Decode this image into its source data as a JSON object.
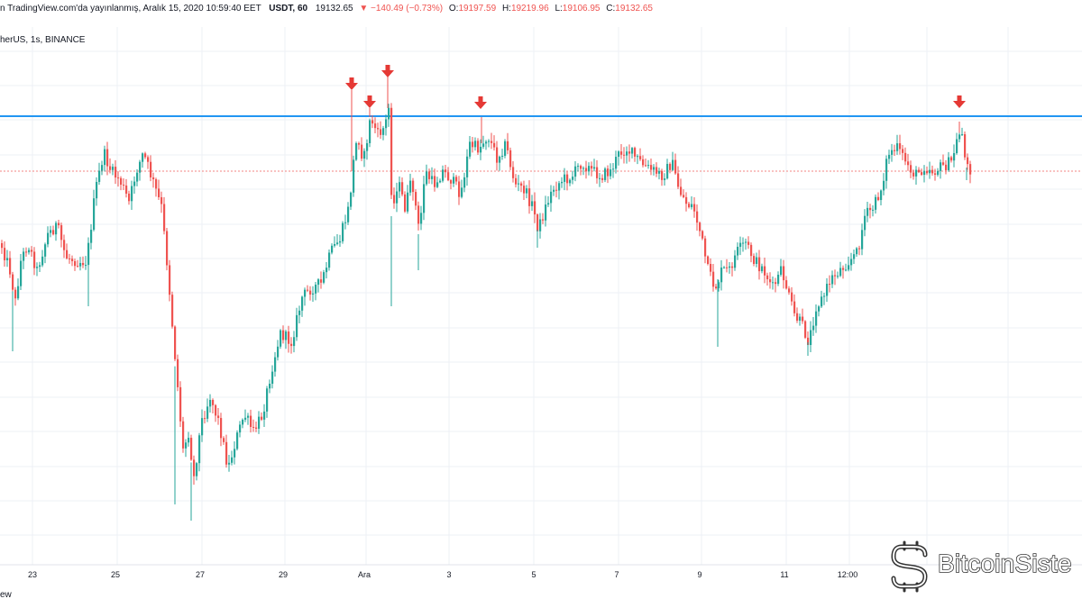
{
  "header": {
    "prefix": "n TradingView.com'da yayınlanmış, Aralık 15, 2020 10:59:40 EET",
    "symbol": "USDT, 60",
    "last": "19132.65",
    "change": "▼ −140.49 (−0.73%)",
    "o_label": "O:",
    "o_value": "19197.59",
    "h_label": "H:",
    "h_value": "19219.96",
    "l_label": "L:",
    "l_value": "19106.95",
    "c_label": "C:",
    "c_value": "19132.65"
  },
  "subheader": "herUS, 1s, BINANCE",
  "footer_brand": "ew",
  "watermark": "BitcoinSiste",
  "chart_data": {
    "type": "candlestick",
    "x_labels": [
      "23",
      "25",
      "27",
      "29",
      "Ara",
      "3",
      "5",
      "7",
      "9",
      "11",
      "12:00"
    ],
    "resistance_line": {
      "color": "#2196f3"
    },
    "current_price_line": {
      "color": "#ef5350",
      "value": 19132.65
    },
    "markers": {
      "count": 5,
      "color": "#e53935",
      "shape": "down-arrow"
    },
    "up_color": "#26a69a",
    "down_color": "#ef5350",
    "grid": true
  }
}
